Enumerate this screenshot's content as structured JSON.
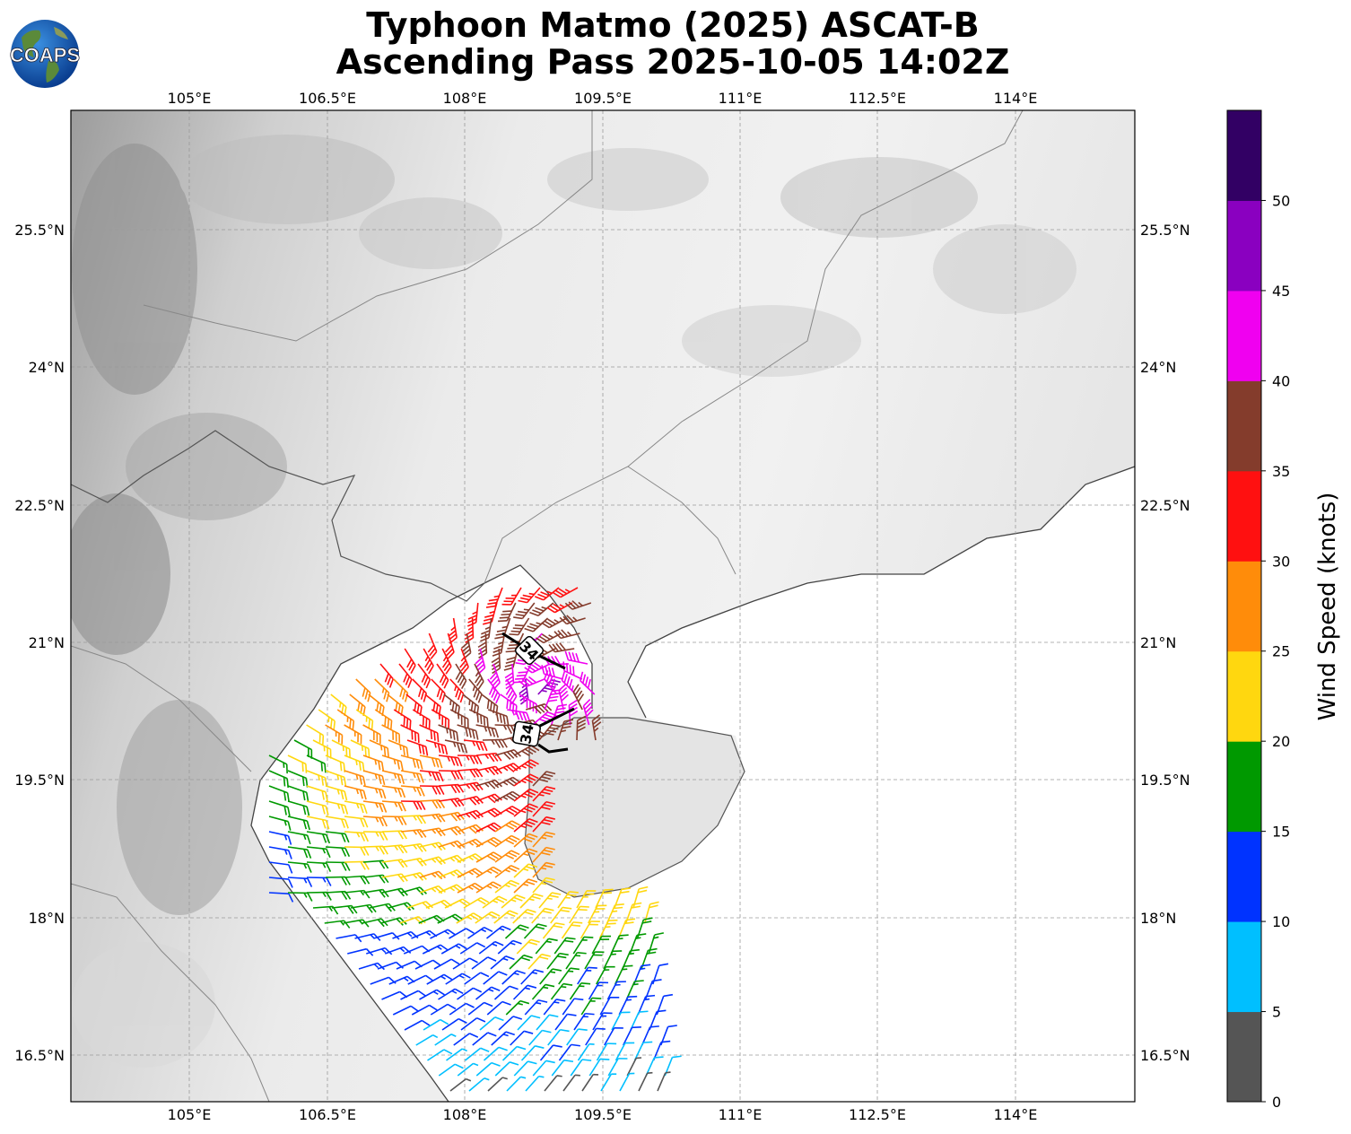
{
  "header": {
    "title_line1": "Typhoon Matmo (2025) ASCAT-B",
    "title_line2": "Ascending Pass 2025-10-05 14:02Z",
    "logo_text": "COAPS"
  },
  "map": {
    "lon_labels": [
      "105°E",
      "106.5°E",
      "108°E",
      "109.5°E",
      "111°E",
      "112.5°E",
      "114°E"
    ],
    "lat_labels": [
      "25.5°N",
      "24°N",
      "22.5°N",
      "21°N",
      "19.5°N",
      "18°N",
      "16.5°N"
    ],
    "lon_range": [
      103.7,
      115.3
    ],
    "lat_range": [
      16.0,
      26.8
    ],
    "gridlines": true,
    "radius_labels": [
      "34",
      "34"
    ]
  },
  "colorbar": {
    "label": "Wind Speed (knots)",
    "ticks": [
      "0",
      "5",
      "10",
      "15",
      "20",
      "25",
      "30",
      "35",
      "40",
      "45",
      "50"
    ],
    "colors": [
      "#555555",
      "#00bfff",
      "#0033ff",
      "#009900",
      "#ffd70f",
      "#ff8c0a",
      "#ff1010",
      "#843c2c",
      "#f000f0",
      "#8a00c0",
      "#320064"
    ],
    "range_knots": [
      0,
      55
    ]
  }
}
